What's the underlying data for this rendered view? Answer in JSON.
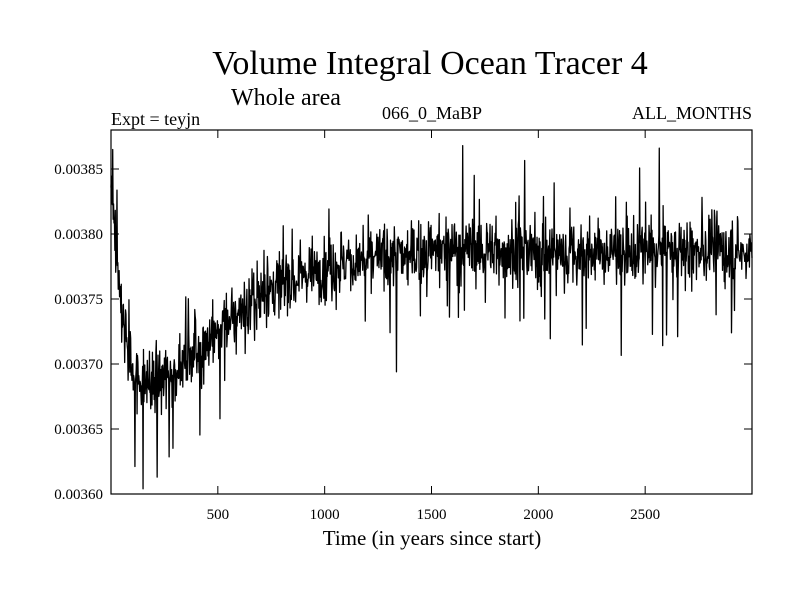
{
  "chart_data": {
    "type": "line",
    "title": "Volume Integral Ocean Tracer 4",
    "subtitle": "Whole area",
    "experiment": "Expt = teyjn",
    "run_label": "066_0_MaBP",
    "period": "ALL_MONTHS",
    "xlabel": "Time (in years since start)",
    "ylabel": "",
    "xlim": [
      0,
      3000
    ],
    "ylim": [
      0.0036,
      0.00388
    ],
    "x_ticks": [
      500,
      1000,
      1500,
      2000,
      2500
    ],
    "x_tick_labels": [
      "500",
      "1000",
      "1500",
      "2000",
      "2500"
    ],
    "y_ticks": [
      0.0036,
      0.00365,
      0.0037,
      0.00375,
      0.0038,
      0.00385
    ],
    "y_tick_labels": [
      "0.00360",
      "0.00365",
      "0.00370",
      "0.00375",
      "0.00380",
      "0.00385"
    ],
    "grid": false,
    "legend": "none",
    "series": [
      {
        "name": "Volume Integral Ocean Tracer 4",
        "trend_x": [
          0,
          20,
          50,
          100,
          150,
          200,
          300,
          400,
          500,
          600,
          700,
          800,
          900,
          1000,
          1100,
          1200,
          1300,
          1400,
          1500,
          1600,
          1700,
          1800,
          1900,
          2000,
          2200,
          2400,
          2600,
          2800,
          3000
        ],
        "trend_y": [
          0.003845,
          0.0038,
          0.003735,
          0.003695,
          0.003685,
          0.003685,
          0.003695,
          0.00371,
          0.003725,
          0.00374,
          0.003752,
          0.003762,
          0.00377,
          0.003775,
          0.003778,
          0.00378,
          0.003782,
          0.003784,
          0.003787,
          0.00379,
          0.003789,
          0.003788,
          0.003787,
          0.003785,
          0.003785,
          0.003785,
          0.003787,
          0.003788,
          0.003785
        ],
        "noise_amplitude": 2.2e-05,
        "extreme_points": [
          {
            "x": 8,
            "y": 0.003865
          },
          {
            "x": 150,
            "y": 0.003604
          },
          {
            "x": 215,
            "y": 0.003613
          },
          {
            "x": 1335,
            "y": 0.003694
          },
          {
            "x": 1645,
            "y": 0.003868
          },
          {
            "x": 2565,
            "y": 0.003866
          }
        ]
      }
    ]
  }
}
